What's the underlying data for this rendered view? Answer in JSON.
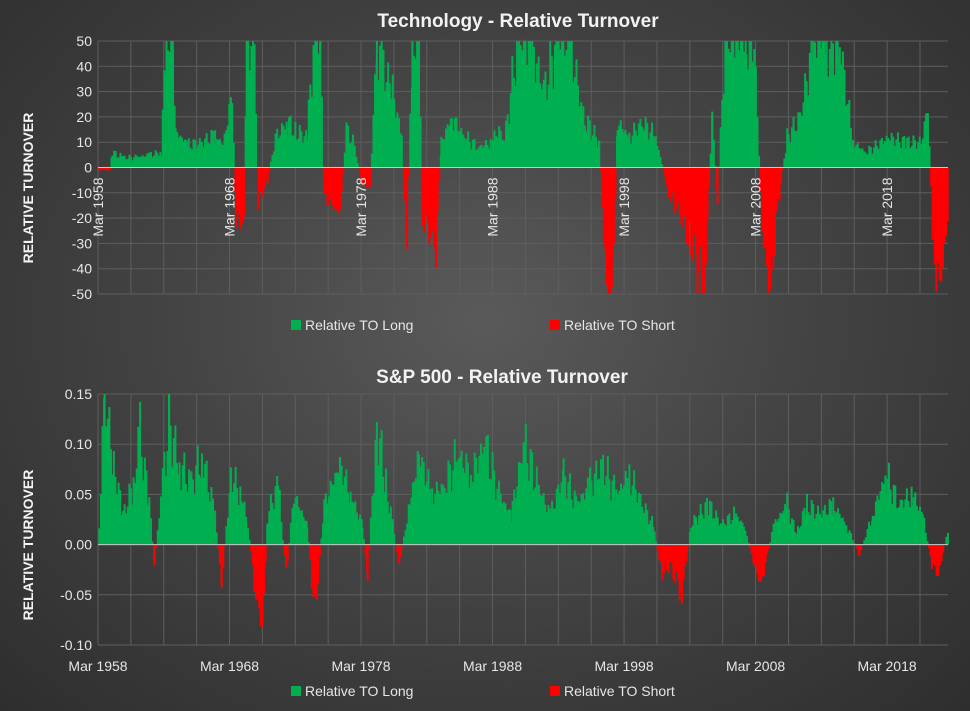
{
  "colors": {
    "long": "#00b050",
    "short": "#ff0000"
  },
  "chart_data": [
    {
      "type": "area",
      "title": "Technology - Relative Turnover",
      "ylabel": "RELATIVE TURNOVER",
      "xlabel": "",
      "ylim": [
        -50,
        50
      ],
      "yticks": [
        50,
        40,
        30,
        20,
        10,
        0,
        -10,
        -20,
        -30,
        -40,
        -50
      ],
      "ytick_labels": [
        "50",
        "40",
        "30",
        "20",
        "10",
        "0",
        "-10",
        "-20",
        "-30",
        "-40",
        "-50"
      ],
      "xrange": [
        1958.17,
        2022.8
      ],
      "xtick_labels": [
        "Mar 1958",
        "Mar 1968",
        "Mar 1978",
        "Mar 1988",
        "Mar 1998",
        "Mar 2008",
        "Mar 2018"
      ],
      "xtick_years": [
        1958.17,
        1968.17,
        1978.17,
        1988.17,
        1998.17,
        2008.17,
        2018.17
      ],
      "xtick_position": "rotated-inside",
      "legend": [
        "Relative TO Long",
        "Relative TO Short"
      ],
      "legend_position": "bottom",
      "series_points": [
        [
          1958.2,
          -1
        ],
        [
          1959.0,
          -1
        ],
        [
          1959.2,
          6
        ],
        [
          1960,
          4
        ],
        [
          1961,
          4
        ],
        [
          1962,
          5
        ],
        [
          1962.9,
          6
        ],
        [
          1963.3,
          50
        ],
        [
          1963.8,
          50
        ],
        [
          1964,
          14
        ],
        [
          1965,
          9
        ],
        [
          1966,
          10
        ],
        [
          1967,
          13
        ],
        [
          1967.6,
          9
        ],
        [
          1968.3,
          28
        ],
        [
          1968.6,
          -20
        ],
        [
          1969.2,
          -22
        ],
        [
          1969.4,
          50
        ],
        [
          1970.0,
          50
        ],
        [
          1970.3,
          -14
        ],
        [
          1971,
          -5
        ],
        [
          1971.6,
          12
        ],
        [
          1972.5,
          18
        ],
        [
          1973.2,
          14
        ],
        [
          1974,
          12
        ],
        [
          1974.5,
          50
        ],
        [
          1975.0,
          50
        ],
        [
          1975.3,
          -12
        ],
        [
          1976.5,
          -18
        ],
        [
          1977,
          15
        ],
        [
          1977.5,
          10
        ],
        [
          1978.2,
          -6
        ],
        [
          1978.8,
          -8
        ],
        [
          1979.3,
          50
        ],
        [
          1979.8,
          40
        ],
        [
          1980.5,
          30
        ],
        [
          1981.2,
          12
        ],
        [
          1981.6,
          -28
        ],
        [
          1982.0,
          50
        ],
        [
          1982.5,
          50
        ],
        [
          1982.8,
          -20
        ],
        [
          1983.8,
          -32
        ],
        [
          1984.2,
          10
        ],
        [
          1985,
          20
        ],
        [
          1986,
          12
        ],
        [
          1987,
          8
        ],
        [
          1988,
          10
        ],
        [
          1988.6,
          15
        ],
        [
          1989,
          10
        ],
        [
          1990,
          50
        ],
        [
          1991,
          50
        ],
        [
          1992,
          30
        ],
        [
          1993,
          50
        ],
        [
          1994,
          50
        ],
        [
          1995,
          20
        ],
        [
          1996.2,
          10
        ],
        [
          1996.8,
          -50
        ],
        [
          1997.2,
          -50
        ],
        [
          1997.6,
          18
        ],
        [
          1998.5,
          12
        ],
        [
          1999.5,
          18
        ],
        [
          2000.5,
          12
        ],
        [
          2001.5,
          -10
        ],
        [
          2002.5,
          -20
        ],
        [
          2003.2,
          -30
        ],
        [
          2004.2,
          -50
        ],
        [
          2004.8,
          20
        ],
        [
          2005.2,
          -12
        ],
        [
          2005.8,
          50
        ],
        [
          2006.5,
          50
        ],
        [
          2007.4,
          50
        ],
        [
          2008.0,
          50
        ],
        [
          2008.6,
          -25
        ],
        [
          2009.2,
          -50
        ],
        [
          2009.8,
          -15
        ],
        [
          2010.5,
          12
        ],
        [
          2011.5,
          20
        ],
        [
          2012.5,
          50
        ],
        [
          2013.5,
          50
        ],
        [
          2014.5,
          50
        ],
        [
          2015.5,
          10
        ],
        [
          2016.5,
          6
        ],
        [
          2018.2,
          12
        ],
        [
          2019.5,
          10
        ],
        [
          2020.7,
          10
        ],
        [
          2021.2,
          24
        ],
        [
          2021.6,
          -30
        ],
        [
          2022.1,
          -50
        ],
        [
          2022.8,
          -15
        ]
      ]
    },
    {
      "type": "area",
      "title": "S&P 500 - Relative Turnover",
      "ylabel": "RELATIVE TURNOVER",
      "xlabel": "",
      "ylim": [
        -0.1,
        0.15
      ],
      "yticks": [
        0.15,
        0.1,
        0.05,
        0.0,
        -0.05,
        -0.1
      ],
      "ytick_labels": [
        "0.15",
        "0.10",
        "0.05",
        "0.00",
        "-0.05",
        "-0.10"
      ],
      "xrange": [
        1958.17,
        2022.8
      ],
      "xtick_labels": [
        "Mar 1958",
        "Mar 1968",
        "Mar 1978",
        "Mar 1988",
        "Mar 1998",
        "Mar 2008",
        "Mar 2018"
      ],
      "xtick_years": [
        1958.17,
        1968.17,
        1978.17,
        1988.17,
        1998.17,
        2008.17,
        2018.17
      ],
      "xtick_position": "bottom",
      "legend": [
        "Relative TO Long",
        "Relative TO Short"
      ],
      "legend_position": "bottom",
      "series_points": [
        [
          1958.2,
          0.02
        ],
        [
          1958.6,
          0.15
        ],
        [
          1959.3,
          0.08
        ],
        [
          1960,
          0.03
        ],
        [
          1960.8,
          0.06
        ],
        [
          1961.3,
          0.11
        ],
        [
          1962.0,
          0.04
        ],
        [
          1962.4,
          -0.02
        ],
        [
          1962.9,
          0.05
        ],
        [
          1963.5,
          0.12
        ],
        [
          1964.3,
          0.08
        ],
        [
          1965.2,
          0.06
        ],
        [
          1966.0,
          0.09
        ],
        [
          1967.0,
          0.03
        ],
        [
          1967.5,
          -0.04
        ],
        [
          1968.2,
          0.07
        ],
        [
          1969.0,
          0.05
        ],
        [
          1969.5,
          0.02
        ],
        [
          1970.0,
          -0.04
        ],
        [
          1970.6,
          -0.085
        ],
        [
          1971.0,
          0.03
        ],
        [
          1971.8,
          0.06
        ],
        [
          1972.4,
          -0.03
        ],
        [
          1973.0,
          0.05
        ],
        [
          1974.0,
          0.02
        ],
        [
          1974.6,
          -0.07
        ],
        [
          1975.3,
          0.04
        ],
        [
          1976.5,
          0.08
        ],
        [
          1977.3,
          0.05
        ],
        [
          1978.2,
          0.02
        ],
        [
          1978.6,
          -0.03
        ],
        [
          1979.3,
          0.12
        ],
        [
          1980.0,
          0.06
        ],
        [
          1980.5,
          0.02
        ],
        [
          1981.0,
          -0.02
        ],
        [
          1981.8,
          0.04
        ],
        [
          1982.5,
          0.09
        ],
        [
          1983.5,
          0.05
        ],
        [
          1984.5,
          0.06
        ],
        [
          1985.5,
          0.09
        ],
        [
          1986.5,
          0.07
        ],
        [
          1987.5,
          0.1
        ],
        [
          1988.6,
          0.05
        ],
        [
          1989.5,
          0.03
        ],
        [
          1990.5,
          0.1
        ],
        [
          1991.5,
          0.06
        ],
        [
          1992.5,
          0.03
        ],
        [
          1993.5,
          0.07
        ],
        [
          1994.5,
          0.04
        ],
        [
          1995.5,
          0.06
        ],
        [
          1996.5,
          0.08
        ],
        [
          1997.5,
          0.05
        ],
        [
          1998.5,
          0.07
        ],
        [
          1999.5,
          0.04
        ],
        [
          2000.3,
          0.02
        ],
        [
          2001.0,
          -0.03
        ],
        [
          2001.6,
          -0.02
        ],
        [
          2002.5,
          -0.05
        ],
        [
          2003.2,
          0.02
        ],
        [
          2004.5,
          0.04
        ],
        [
          2005.5,
          0.02
        ],
        [
          2006.5,
          0.03
        ],
        [
          2007.2,
          0.02
        ],
        [
          2008.0,
          -0.02
        ],
        [
          2008.5,
          -0.04
        ],
        [
          2009.5,
          0.02
        ],
        [
          2010.5,
          0.04
        ],
        [
          2011.2,
          0.01
        ],
        [
          2012.0,
          0.04
        ],
        [
          2013.0,
          0.03
        ],
        [
          2014.0,
          0.04
        ],
        [
          2015.0,
          0.02
        ],
        [
          2016.0,
          -0.01
        ],
        [
          2017.0,
          0.03
        ],
        [
          2018.0,
          0.07
        ],
        [
          2019.0,
          0.04
        ],
        [
          2020.0,
          0.05
        ],
        [
          2020.8,
          0.03
        ],
        [
          2021.5,
          -0.02
        ],
        [
          2022.0,
          -0.03
        ],
        [
          2022.8,
          0.02
        ]
      ]
    }
  ]
}
